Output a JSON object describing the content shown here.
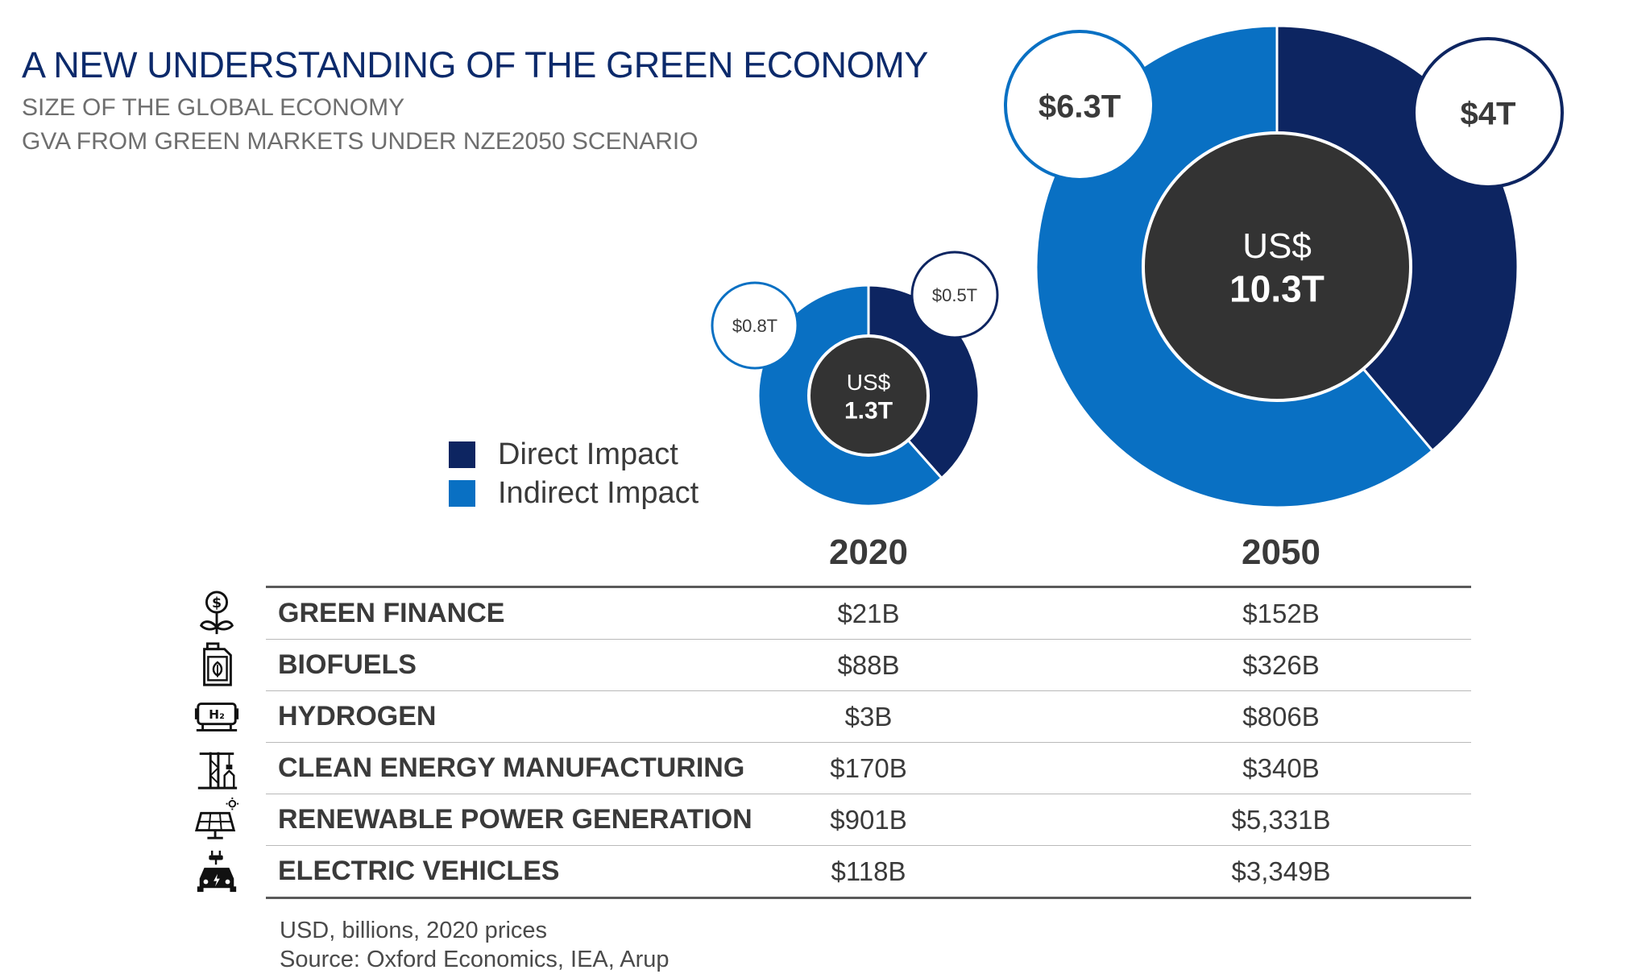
{
  "title": "A NEW UNDERSTANDING OF THE GREEN ECONOMY",
  "subtitle1": "SIZE OF THE GLOBAL ECONOMY",
  "subtitle2": "GVA FROM GREEN MARKETS UNDER NZE2050 SCENARIO",
  "colors": {
    "direct": "#0d2561",
    "indirect": "#0970c3",
    "center": "#333333",
    "title": "#0c2a6b"
  },
  "legend": [
    {
      "label": "Direct Impact",
      "color": "#0d2561"
    },
    {
      "label": "Indirect Impact",
      "color": "#0970c3"
    }
  ],
  "chart_data": [
    {
      "type": "pie",
      "year": "2020",
      "center_label_top": "US$",
      "center_label_value": "1.3T",
      "total": 1.3,
      "slices": [
        {
          "name": "Direct Impact",
          "value": 0.5,
          "label": "$0.5T"
        },
        {
          "name": "Indirect Impact",
          "value": 0.8,
          "label": "$0.8T"
        }
      ]
    },
    {
      "type": "pie",
      "year": "2050",
      "center_label_top": "US$",
      "center_label_value": "10.3T",
      "total": 10.3,
      "slices": [
        {
          "name": "Direct Impact",
          "value": 4,
          "label": "$4T"
        },
        {
          "name": "Indirect Impact",
          "value": 6.3,
          "label": "$6.3T"
        }
      ]
    }
  ],
  "table": {
    "columns": [
      "2020",
      "2050"
    ],
    "rows": [
      {
        "label": "GREEN FINANCE",
        "icon": "money-plant-icon",
        "v2020": "$21B",
        "v2050": "$152B"
      },
      {
        "label": "BIOFUELS",
        "icon": "biofuel-can-icon",
        "v2020": "$88B",
        "v2050": "$326B"
      },
      {
        "label": "HYDROGEN",
        "icon": "hydrogen-tank-icon",
        "v2020": "$3B",
        "v2050": "$806B"
      },
      {
        "label": "CLEAN ENERGY MANUFACTURING",
        "icon": "factory-crane-icon",
        "v2020": "$170B",
        "v2050": "$340B"
      },
      {
        "label": "RENEWABLE POWER GENERATION",
        "icon": "solar-panel-icon",
        "v2020": "$901B",
        "v2050": "$5,331B"
      },
      {
        "label": "ELECTRIC VEHICLES",
        "icon": "electric-car-icon",
        "v2020": "$118B",
        "v2050": "$3,349B"
      }
    ]
  },
  "note1": "USD, billions, 2020 prices",
  "note2": "Source: Oxford Economics, IEA, Arup"
}
